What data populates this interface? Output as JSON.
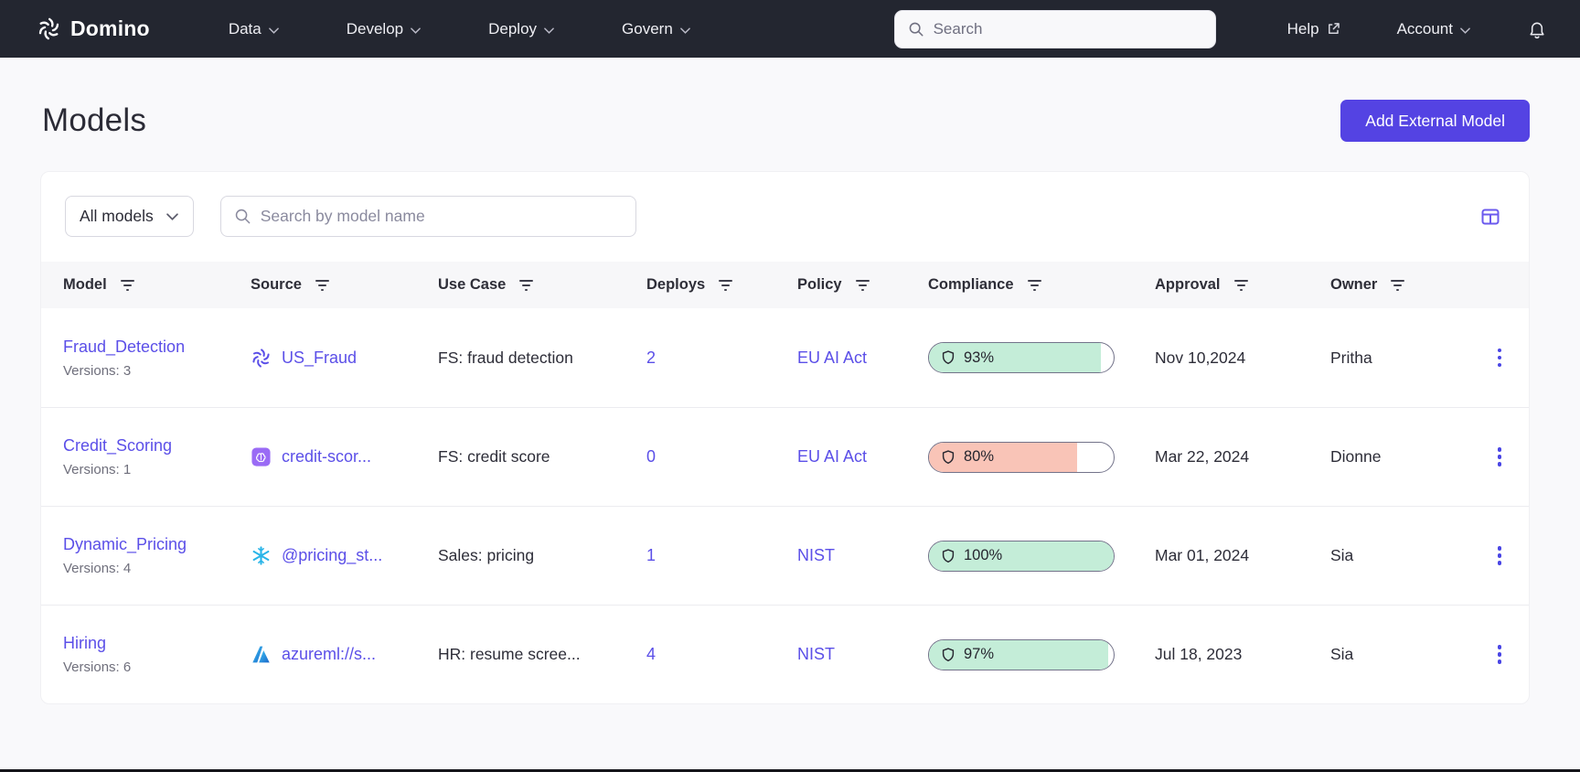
{
  "navbar": {
    "brand": "Domino",
    "menus": [
      {
        "label": "Data"
      },
      {
        "label": "Develop"
      },
      {
        "label": "Deploy"
      },
      {
        "label": "Govern"
      }
    ],
    "search_placeholder": "Search",
    "help_label": "Help",
    "account_label": "Account"
  },
  "page": {
    "title": "Models",
    "add_button_label": "Add External Model"
  },
  "filters": {
    "scope_selected": "All models",
    "search_placeholder": "Search by model name"
  },
  "table": {
    "columns": [
      "Model",
      "Source",
      "Use Case",
      "Deploys",
      "Policy",
      "Compliance",
      "Approval",
      "Owner"
    ],
    "rows": [
      {
        "model": "Fraud_Detection",
        "versions": "Versions: 3",
        "source": "US_Fraud",
        "source_icon": "domino-spiral-icon",
        "use_case": "FS: fraud detection",
        "deploys": "2",
        "policy": "EU AI Act",
        "compliance_pct": 93,
        "compliance_label": "93%",
        "compliance_status": "good",
        "approval": "Nov 10,2024",
        "owner": "Pritha"
      },
      {
        "model": "Credit_Scoring",
        "versions": "Versions: 1",
        "source": "credit-scor...",
        "source_icon": "brain-chip-icon",
        "use_case": "FS: credit score",
        "deploys": "0",
        "policy": "EU AI Act",
        "compliance_pct": 80,
        "compliance_label": "80%",
        "compliance_status": "bad",
        "approval": "Mar 22, 2024",
        "owner": "Dionne"
      },
      {
        "model": "Dynamic_Pricing",
        "versions": "Versions: 4",
        "source": "@pricing_st...",
        "source_icon": "snowflake-icon",
        "use_case": "Sales: pricing",
        "deploys": "1",
        "policy": "NIST",
        "compliance_pct": 100,
        "compliance_label": "100%",
        "compliance_status": "good",
        "approval": "Mar 01, 2024",
        "owner": "Sia"
      },
      {
        "model": "Hiring",
        "versions": "Versions: 6",
        "source": "azureml://s...",
        "source_icon": "azure-icon",
        "use_case": "HR: resume scree...",
        "deploys": "4",
        "policy": "NIST",
        "compliance_pct": 97,
        "compliance_label": "97%",
        "compliance_status": "good",
        "approval": "Jul 18, 2023",
        "owner": "Sia"
      }
    ]
  },
  "colors": {
    "navbar_bg": "#232630",
    "accent_purple": "#5b4fe8",
    "button_purple": "#5443e3",
    "compliance_good": "#c4edd8",
    "compliance_bad": "#f9c4b7",
    "badge_border": "#73738a"
  }
}
